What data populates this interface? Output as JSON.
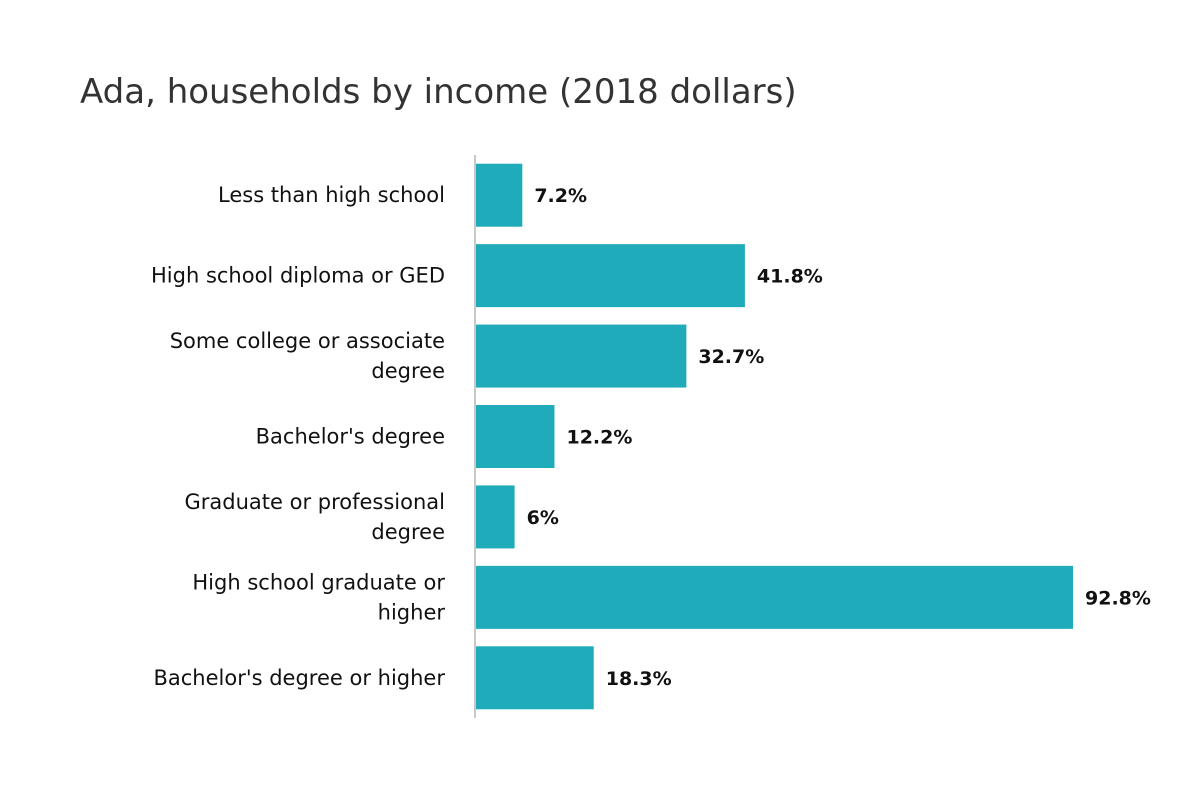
{
  "chart_data": {
    "type": "bar",
    "orientation": "horizontal",
    "title": "Ada, households by income (2018 dollars)",
    "categories": [
      "Less than high school",
      "High school diploma or GED",
      "Some college or associate degree",
      "Bachelor's degree",
      "Graduate or professional degree",
      "High school graduate or higher",
      "Bachelor's degree or higher"
    ],
    "values": [
      7.2,
      41.8,
      32.7,
      12.2,
      6,
      92.8,
      18.3
    ],
    "value_labels": [
      "7.2%",
      "41.8%",
      "32.7%",
      "12.2%",
      "6%",
      "92.8%",
      "18.3%"
    ],
    "xlim": [
      0,
      92.8
    ],
    "bar_color": "#20abbb",
    "axis_color": "#c8c8c8",
    "grid": false,
    "legend": "none"
  }
}
